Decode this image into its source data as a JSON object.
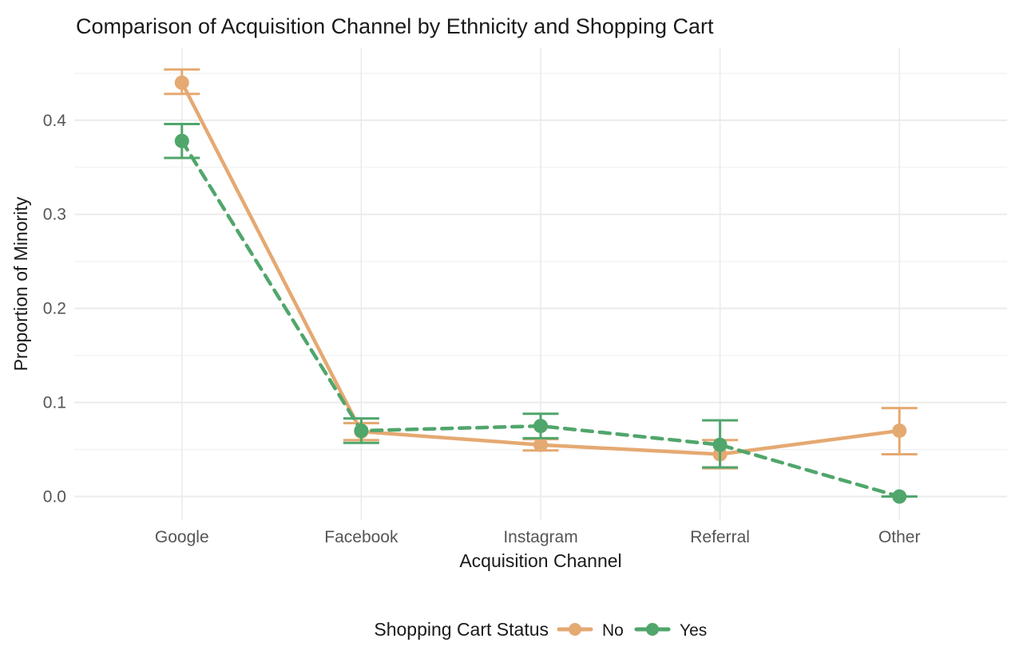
{
  "chart_data": {
    "type": "line",
    "title": "Comparison of Acquisition Channel by Ethnicity and Shopping Cart",
    "xlabel": "Acquisition Channel",
    "ylabel": "Proportion of Minority",
    "legend_title": "Shopping Cart Status",
    "legend_position": "bottom",
    "grid": true,
    "categories": [
      "Google",
      "Facebook",
      "Instagram",
      "Referral",
      "Other"
    ],
    "yticks": [
      "0.0",
      "0.1",
      "0.2",
      "0.3",
      "0.4"
    ],
    "ytick_values": [
      0.0,
      0.1,
      0.2,
      0.3,
      0.4
    ],
    "minor_ticks": [
      0.05,
      0.15,
      0.25,
      0.35,
      0.45
    ],
    "ylim": [
      -0.025,
      0.477
    ],
    "series": [
      {
        "name": "No",
        "color": "#E5A972",
        "linetype": "solid",
        "values": [
          0.44,
          0.069,
          0.055,
          0.045,
          0.07
        ],
        "ci_low": [
          0.428,
          0.06,
          0.049,
          0.03,
          0.045
        ],
        "ci_high": [
          0.454,
          0.078,
          0.061,
          0.06,
          0.094
        ]
      },
      {
        "name": "Yes",
        "color": "#50A66B",
        "linetype": "dashed",
        "values": [
          0.378,
          0.07,
          0.075,
          0.055,
          0.0
        ],
        "ci_low": [
          0.36,
          0.057,
          0.062,
          0.031,
          0.0
        ],
        "ci_high": [
          0.396,
          0.083,
          0.088,
          0.081,
          0.0
        ]
      }
    ],
    "colors": {
      "grid_major": "#EBEBEB",
      "grid_minor": "#F2F2F2",
      "axis_text": "#555555",
      "text": "#1A1A1A",
      "background": "#FFFFFF"
    }
  }
}
